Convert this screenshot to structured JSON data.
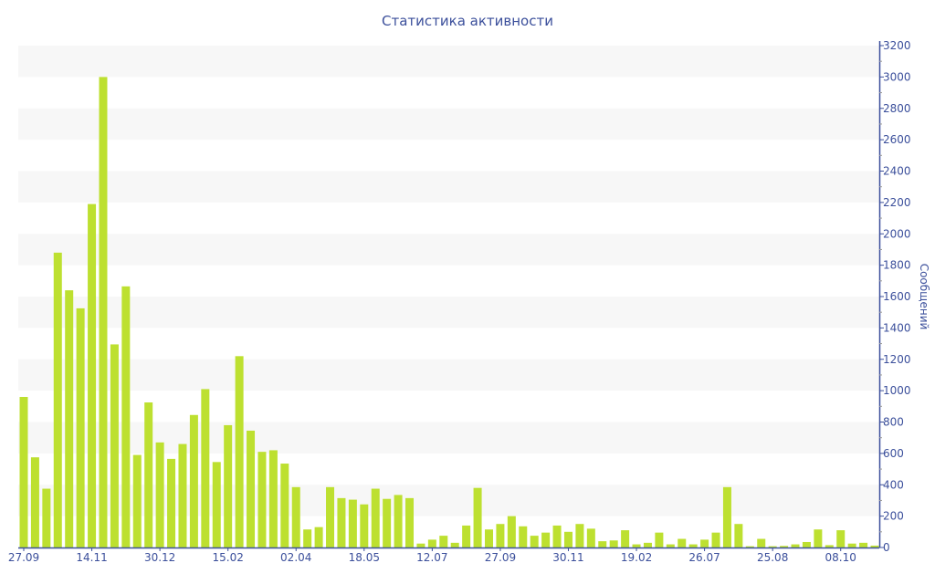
{
  "chart_data": {
    "type": "bar",
    "title": "Статистика активности",
    "ylabel": "Сообщений",
    "xlabel": "",
    "ylim": [
      0,
      3200
    ],
    "y_ticks": [
      0,
      200,
      400,
      600,
      800,
      1000,
      1200,
      1400,
      1600,
      1800,
      2000,
      2200,
      2400,
      2600,
      2800,
      3000,
      3200
    ],
    "y_axis_side": "right",
    "grid": "alternating horizontal bands",
    "bar_color": "#bde030",
    "axis_color": "#3b4f9b",
    "categories": [
      "27.09",
      "",
      "",
      "",
      "",
      "",
      "14.11",
      "",
      "",
      "",
      "",
      "",
      "30.12",
      "",
      "",
      "",
      "",
      "",
      "15.02",
      "",
      "",
      "",
      "",
      "",
      "02.04",
      "",
      "",
      "",
      "",
      "",
      "18.05",
      "",
      "",
      "",
      "",
      "",
      "12.07",
      "",
      "",
      "",
      "",
      "",
      "27.09",
      "",
      "",
      "",
      "",
      "",
      "30.11",
      "",
      "",
      "",
      "",
      "",
      "19.02",
      "",
      "",
      "",
      "",
      "",
      "26.07",
      "",
      "",
      "",
      "",
      "",
      "25.08",
      "",
      "",
      "",
      "",
      "",
      "08.10",
      "",
      "",
      ""
    ],
    "values": [
      960,
      575,
      375,
      1880,
      1640,
      1525,
      2190,
      3000,
      1295,
      1665,
      590,
      925,
      670,
      565,
      660,
      845,
      1010,
      545,
      780,
      1220,
      745,
      610,
      620,
      535,
      385,
      115,
      130,
      385,
      315,
      305,
      275,
      375,
      310,
      335,
      315,
      25,
      50,
      75,
      30,
      140,
      380,
      115,
      150,
      200,
      135,
      75,
      95,
      140,
      100,
      150,
      120,
      40,
      45,
      110,
      20,
      30,
      95,
      20,
      55,
      20,
      50,
      95,
      385,
      150,
      8,
      55,
      8,
      10,
      20,
      35,
      115,
      15,
      110,
      25,
      30,
      12
    ]
  }
}
